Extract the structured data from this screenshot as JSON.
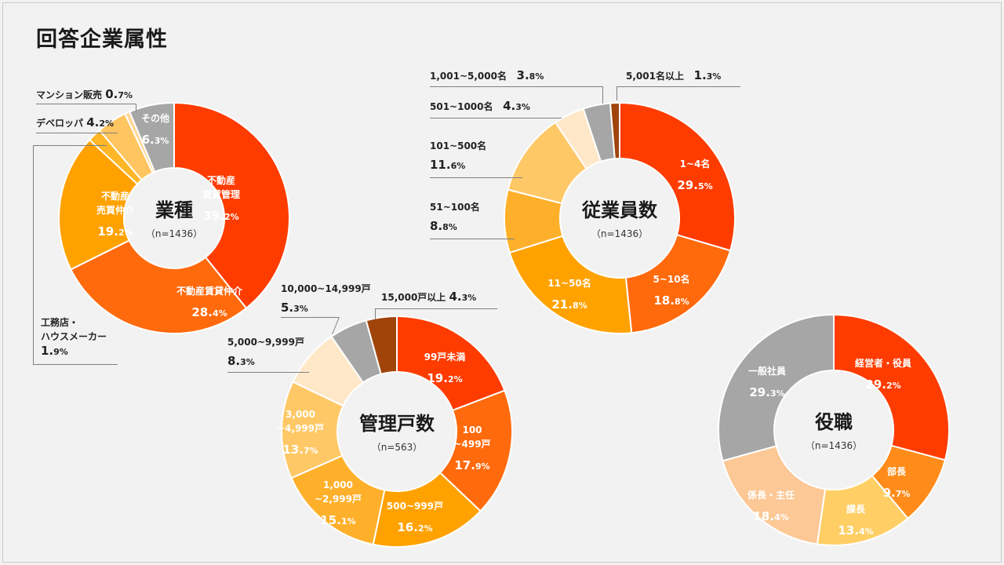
{
  "page_title": "回答企業属性",
  "chart_data": [
    {
      "id": "industry",
      "type": "pie",
      "title": "業種",
      "n_label": "（n=1436）",
      "slices": [
        {
          "label": "不動産賃貸管理",
          "label_lines": [
            "不動産",
            "賃貸管理"
          ],
          "pct_main": "39.",
          "pct_sub": "2%",
          "value": 39.2,
          "color": "#ff3c00",
          "text_color": "#ffffff",
          "inside": true
        },
        {
          "label": "不動産賃貸仲介",
          "label_lines": [
            "不動産賃貸仲介"
          ],
          "pct_main": "28.",
          "pct_sub": "4%",
          "value": 28.4,
          "color": "#ff6a0d",
          "text_color": "#ffffff",
          "inside": true
        },
        {
          "label": "不動産売買仲介",
          "label_lines": [
            "不動産",
            "売買仲介"
          ],
          "pct_main": "19.",
          "pct_sub": "2%",
          "value": 19.2,
          "color": "#ffa200",
          "text_color": "#ffffff",
          "inside": true
        },
        {
          "label": "工務店・ハウスメーカー",
          "label_lines": [
            "工務店・",
            "ハウスメーカー"
          ],
          "pct_main": "1.",
          "pct_sub": "9%",
          "value": 1.9,
          "color": "#ffb627",
          "inside": false
        },
        {
          "label": "デベロッパ",
          "label_lines": [
            "デベロッパ"
          ],
          "pct_main": "4.",
          "pct_sub": "2%",
          "value": 4.2,
          "color": "#ffc560",
          "inside": false
        },
        {
          "label": "マンション販売",
          "label_lines": [
            "マンション販売"
          ],
          "pct_main": "0.",
          "pct_sub": "7%",
          "value": 0.7,
          "color": "#ffd89a",
          "inside": false
        },
        {
          "label": "その他",
          "label_lines": [
            "その他"
          ],
          "pct_main": "6.",
          "pct_sub": "3%",
          "value": 6.3,
          "color": "#a6a6a6",
          "text_color": "#ffffff",
          "inside": true
        }
      ]
    },
    {
      "id": "employees",
      "type": "pie",
      "title": "従業員数",
      "n_label": "（n=1436）",
      "slices": [
        {
          "label": "1~4名",
          "label_lines": [
            "1~4名"
          ],
          "pct_main": "29.",
          "pct_sub": "5%",
          "value": 29.5,
          "color": "#ff3c00",
          "text_color": "#ffffff",
          "inside": true
        },
        {
          "label": "5~10名",
          "label_lines": [
            "5~10名"
          ],
          "pct_main": "18.",
          "pct_sub": "8%",
          "value": 18.8,
          "color": "#ff6a0d",
          "text_color": "#ffffff",
          "inside": true
        },
        {
          "label": "11~50名",
          "label_lines": [
            "11~50名"
          ],
          "pct_main": "21.",
          "pct_sub": "8%",
          "value": 21.8,
          "color": "#ffa200",
          "text_color": "#ffffff",
          "inside": true
        },
        {
          "label": "51~100名",
          "label_lines": [
            "51~100名"
          ],
          "pct_main": "8.",
          "pct_sub": "8%",
          "value": 8.8,
          "color": "#ffb02a",
          "inside": false
        },
        {
          "label": "101~500名",
          "label_lines": [
            "101~500名"
          ],
          "pct_main": "11.",
          "pct_sub": "6%",
          "value": 11.6,
          "color": "#ffc866",
          "inside": false
        },
        {
          "label": "501~1000名",
          "label_lines": [
            "501~1000名"
          ],
          "pct_main": "4.",
          "pct_sub": "3%",
          "value": 4.3,
          "color": "#ffe8c8",
          "inside": false
        },
        {
          "label": "1,001~5,000名",
          "label_lines": [
            "1,001~5,000名"
          ],
          "pct_main": "3.",
          "pct_sub": "8%",
          "value": 3.8,
          "color": "#a6a6a6",
          "inside": false
        },
        {
          "label": "5,001名以上",
          "label_lines": [
            "5,001名以上"
          ],
          "pct_main": "1.",
          "pct_sub": "3%",
          "value": 1.3,
          "color": "#a0440a",
          "inside": false
        }
      ]
    },
    {
      "id": "units",
      "type": "pie",
      "title": "管理戸数",
      "n_label": "（n=563）",
      "slices": [
        {
          "label": "99戸未満",
          "label_lines": [
            "99戸未満"
          ],
          "pct_main": "19.",
          "pct_sub": "2%",
          "value": 19.2,
          "color": "#ff3c00",
          "text_color": "#ffffff",
          "inside": true
        },
        {
          "label": "100~499戸",
          "label_lines": [
            "100",
            "~499戸"
          ],
          "pct_main": "17.",
          "pct_sub": "9%",
          "value": 17.9,
          "color": "#ff6a0d",
          "text_color": "#ffffff",
          "inside": true
        },
        {
          "label": "500~999戸",
          "label_lines": [
            "500~999戸"
          ],
          "pct_main": "16.",
          "pct_sub": "2%",
          "value": 16.2,
          "color": "#ffa200",
          "text_color": "#ffffff",
          "inside": true
        },
        {
          "label": "1,000~2,999戸",
          "label_lines": [
            "1,000",
            "~2,999戸"
          ],
          "pct_main": "15.",
          "pct_sub": "1%",
          "value": 15.1,
          "color": "#ffb02a",
          "text_color": "#ffffff",
          "inside": true
        },
        {
          "label": "3,000~4,999戸",
          "label_lines": [
            "3,000",
            "~4,999戸"
          ],
          "pct_main": "13.",
          "pct_sub": "7%",
          "value": 13.7,
          "color": "#ffc866",
          "text_color": "#ffffff",
          "inside": true
        },
        {
          "label": "5,000~9,999戸",
          "label_lines": [
            "5,000~9,999戸"
          ],
          "pct_main": "8.",
          "pct_sub": "3%",
          "value": 8.3,
          "color": "#ffe8c8",
          "inside": false
        },
        {
          "label": "10,000~14,999戸",
          "label_lines": [
            "10,000~14,999戸"
          ],
          "pct_main": "5.",
          "pct_sub": "3%",
          "value": 5.3,
          "color": "#a6a6a6",
          "inside": false
        },
        {
          "label": "15,000戸以上",
          "label_lines": [
            "15,000戸以上"
          ],
          "pct_main": "4.",
          "pct_sub": "3%",
          "value": 4.3,
          "color": "#a0440a",
          "inside": false
        }
      ]
    },
    {
      "id": "position",
      "type": "pie",
      "title": "役職",
      "n_label": "（n=1436）",
      "slices": [
        {
          "label": "経営者・役員",
          "label_lines": [
            "経営者・役員"
          ],
          "pct_main": "29.",
          "pct_sub": "2%",
          "value": 29.2,
          "color": "#ff3c00",
          "text_color": "#ffffff",
          "inside": true
        },
        {
          "label": "部長",
          "label_lines": [
            "部長"
          ],
          "pct_main": "9.",
          "pct_sub": "7%",
          "value": 9.7,
          "color": "#ff8c1a",
          "text_color": "#ffffff",
          "inside": true
        },
        {
          "label": "課長",
          "label_lines": [
            "課長"
          ],
          "pct_main": "13.",
          "pct_sub": "4%",
          "value": 13.4,
          "color": "#ffcf66",
          "text_color": "#ffffff",
          "inside": true
        },
        {
          "label": "係長・主任",
          "label_lines": [
            "係長・主任"
          ],
          "pct_main": "18.",
          "pct_sub": "4%",
          "value": 18.4,
          "color": "#fcc896",
          "text_color": "#ffffff",
          "inside": true
        },
        {
          "label": "一般社員",
          "label_lines": [
            "一般社員"
          ],
          "pct_main": "29.",
          "pct_sub": "3%",
          "value": 29.3,
          "color": "#a6a6a6",
          "text_color": "#ffffff",
          "inside": true
        }
      ]
    }
  ]
}
